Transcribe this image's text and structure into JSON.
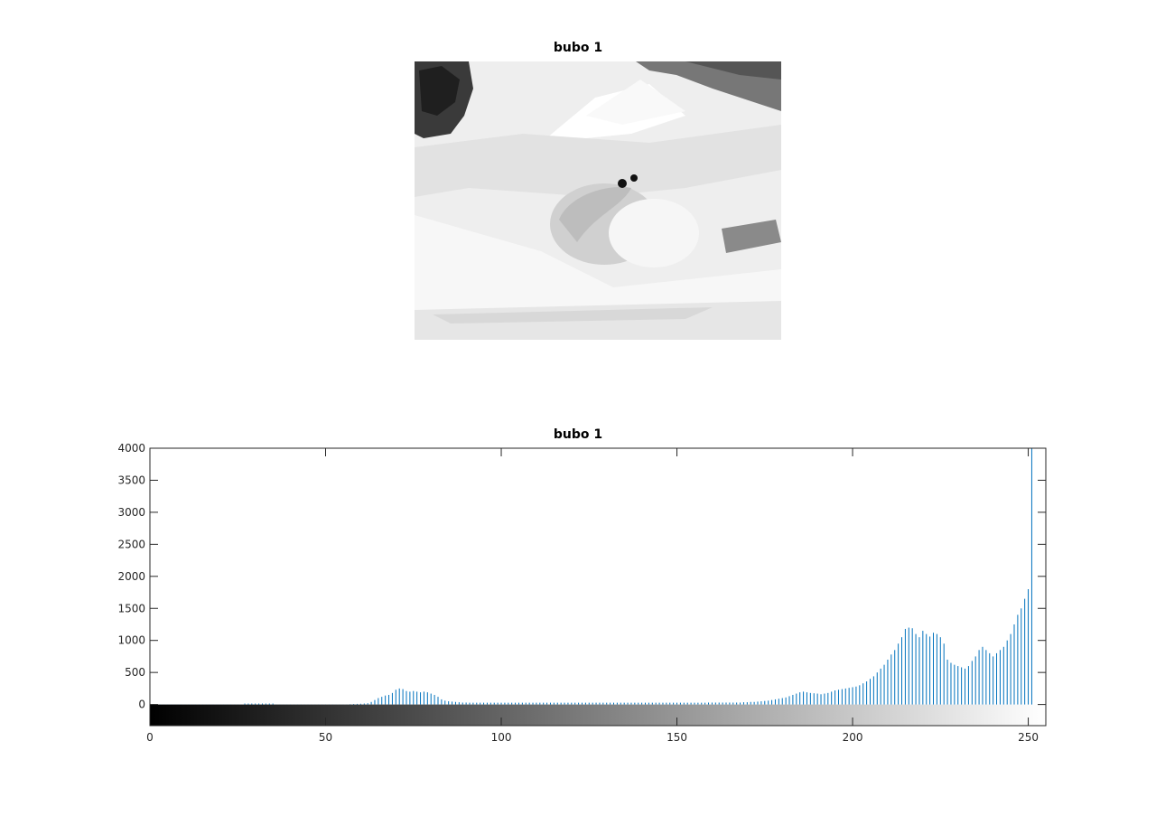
{
  "image_panel": {
    "title": "bubo 1",
    "description_icon": "grayscale-photo-snow-owl"
  },
  "chart_data": {
    "type": "bar",
    "title": "bubo 1",
    "xlabel": "",
    "ylabel": "",
    "xlim": [
      0,
      255
    ],
    "ylim": [
      -330,
      4000
    ],
    "xticks": [
      0,
      50,
      100,
      150,
      200,
      250
    ],
    "yticks": [
      0,
      500,
      1000,
      1500,
      2000,
      2500,
      3000,
      3500,
      4000
    ],
    "bar_color": "#0072bd",
    "colorbar": "gray",
    "grid": false,
    "series": [
      {
        "values": [
          200,
          5,
          2,
          2,
          2,
          2,
          2,
          2,
          2,
          2,
          2,
          2,
          2,
          2,
          2,
          2,
          2,
          2,
          2,
          2,
          2,
          2,
          2,
          2,
          2,
          2,
          2,
          15,
          15,
          15,
          15,
          15,
          15,
          15,
          15,
          15,
          2,
          2,
          2,
          2,
          2,
          2,
          2,
          2,
          2,
          2,
          2,
          2,
          2,
          2,
          2,
          2,
          2,
          2,
          2,
          2,
          2,
          5,
          8,
          10,
          12,
          15,
          20,
          40,
          70,
          100,
          120,
          140,
          150,
          180,
          230,
          250,
          240,
          210,
          200,
          210,
          200,
          190,
          200,
          190,
          170,
          150,
          120,
          80,
          60,
          50,
          45,
          40,
          35,
          30,
          30,
          28,
          28,
          28,
          28,
          28,
          28,
          28,
          28,
          28,
          28,
          28,
          28,
          28,
          28,
          28,
          28,
          28,
          28,
          28,
          28,
          28,
          28,
          28,
          28,
          28,
          28,
          28,
          28,
          28,
          28,
          28,
          28,
          28,
          28,
          28,
          28,
          28,
          28,
          28,
          28,
          28,
          28,
          28,
          28,
          28,
          28,
          28,
          28,
          28,
          28,
          28,
          28,
          28,
          28,
          28,
          28,
          28,
          28,
          28,
          28,
          28,
          28,
          28,
          28,
          28,
          28,
          28,
          28,
          30,
          30,
          30,
          30,
          30,
          30,
          30,
          30,
          30,
          30,
          35,
          35,
          40,
          40,
          45,
          50,
          55,
          60,
          70,
          80,
          90,
          100,
          110,
          130,
          150,
          170,
          190,
          200,
          190,
          180,
          175,
          170,
          160,
          170,
          180,
          200,
          220,
          230,
          240,
          250,
          260,
          270,
          280,
          300,
          330,
          360,
          400,
          440,
          500,
          560,
          620,
          700,
          780,
          850,
          950,
          1050,
          1180,
          1200,
          1190,
          1100,
          1050,
          1150,
          1100,
          1060,
          1120,
          1100,
          1050,
          950,
          700,
          650,
          620,
          600,
          580,
          560,
          600,
          680,
          750,
          850,
          900,
          850,
          800,
          750,
          800,
          850,
          900,
          1000,
          1100,
          1250,
          1400,
          1500,
          1650,
          1800,
          4000
        ]
      }
    ]
  }
}
